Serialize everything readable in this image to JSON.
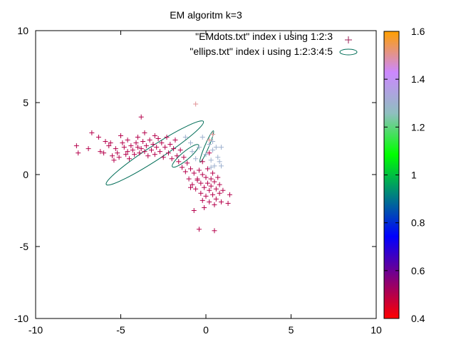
{
  "chart_data": {
    "type": "scatter",
    "title": "EM algoritm k=3",
    "xlim": [
      -10,
      10
    ],
    "ylim": [
      -10,
      10
    ],
    "x_ticks": [
      -10,
      -5,
      0,
      5,
      10
    ],
    "y_ticks": [
      -10,
      -5,
      0,
      5,
      10
    ],
    "grid": false,
    "legend_placement": "top-right",
    "legend": [
      {
        "label": "\"EMdots.txt\" index i using 1:2:3",
        "marker": "plus",
        "color": "#9b1d54"
      },
      {
        "label": "\"ellips.txt\" index i using 1:2:3:4:5",
        "marker": "ellipse",
        "color": "#006d57"
      }
    ],
    "colorbar": {
      "range": [
        0.4,
        1.6
      ],
      "ticks": [
        0.4,
        0.6,
        0.8,
        1,
        1.2,
        1.4,
        1.6
      ],
      "tick_labels": [
        "0.4",
        "0.6",
        "0.8",
        "1",
        "1.2",
        "1.4",
        "1.6"
      ],
      "palette": [
        "#ff0000",
        "#800080",
        "#0000ff",
        "#008080",
        "#00ff00",
        "#8fbfbf",
        "#cc88ff",
        "#ffa000"
      ]
    },
    "points": [
      [
        -7.6,
        2.0,
        0.5
      ],
      [
        -7.5,
        1.5,
        0.5
      ],
      [
        -6.9,
        1.8,
        0.5
      ],
      [
        -6.7,
        2.9,
        0.5
      ],
      [
        -6.3,
        2.6,
        0.5
      ],
      [
        -6.2,
        1.6,
        0.5
      ],
      [
        -6.0,
        1.5,
        0.5
      ],
      [
        -5.9,
        2.3,
        0.5
      ],
      [
        -5.7,
        2.0,
        0.5
      ],
      [
        -5.6,
        2.2,
        0.5
      ],
      [
        -5.5,
        1.3,
        0.5
      ],
      [
        -5.4,
        1.0,
        0.5
      ],
      [
        -5.3,
        1.8,
        0.5
      ],
      [
        -5.2,
        1.5,
        0.5
      ],
      [
        -5.1,
        1.2,
        0.5
      ],
      [
        -5.0,
        2.7,
        0.5
      ],
      [
        -4.9,
        2.2,
        0.5
      ],
      [
        -4.8,
        1.9,
        0.5
      ],
      [
        -4.7,
        1.4,
        0.5
      ],
      [
        -4.6,
        1.6,
        0.5
      ],
      [
        -4.6,
        2.4,
        0.5
      ],
      [
        -4.5,
        1.1,
        0.5
      ],
      [
        -4.4,
        2.0,
        0.5
      ],
      [
        -4.3,
        1.7,
        0.5
      ],
      [
        -4.2,
        1.4,
        0.5
      ],
      [
        -4.1,
        2.2,
        0.5
      ],
      [
        -4.0,
        1.9,
        0.5
      ],
      [
        -4.0,
        2.6,
        0.5
      ],
      [
        -3.9,
        1.5,
        0.5
      ],
      [
        -3.8,
        1.8,
        0.5
      ],
      [
        -3.8,
        4.0,
        0.5
      ],
      [
        -3.7,
        2.3,
        0.5
      ],
      [
        -3.6,
        1.6,
        0.5
      ],
      [
        -3.6,
        2.9,
        0.5
      ],
      [
        -3.5,
        2.0,
        0.5
      ],
      [
        -3.4,
        1.3,
        0.5
      ],
      [
        -3.3,
        2.4,
        0.5
      ],
      [
        -3.2,
        1.7,
        0.5
      ],
      [
        -3.1,
        2.1,
        0.5
      ],
      [
        -3.0,
        1.4,
        0.5
      ],
      [
        -3.0,
        2.7,
        0.5
      ],
      [
        -2.9,
        1.9,
        0.5
      ],
      [
        -2.8,
        2.5,
        0.5
      ],
      [
        -2.7,
        1.6,
        0.5
      ],
      [
        -2.6,
        2.2,
        0.5
      ],
      [
        -2.5,
        1.2,
        0.5
      ],
      [
        -2.4,
        1.9,
        0.5
      ],
      [
        -2.3,
        2.6,
        0.5
      ],
      [
        -2.2,
        1.5,
        0.5
      ],
      [
        -2.1,
        2.1,
        0.5
      ],
      [
        -2.0,
        1.1,
        0.5
      ],
      [
        -1.9,
        1.8,
        0.5
      ],
      [
        -1.8,
        2.4,
        0.5
      ],
      [
        -1.7,
        1.3,
        0.5
      ],
      [
        -1.6,
        0.9,
        0.5
      ],
      [
        -1.5,
        1.7,
        0.5
      ],
      [
        -1.4,
        0.5,
        0.5
      ],
      [
        -1.3,
        1.2,
        0.5
      ],
      [
        -1.2,
        0.2,
        0.5
      ],
      [
        -1.1,
        0.8,
        0.5
      ],
      [
        -1.0,
        -0.3,
        0.5
      ],
      [
        -0.9,
        0.4,
        0.5
      ],
      [
        -0.8,
        -0.7,
        0.5
      ],
      [
        -0.7,
        0.1,
        0.5
      ],
      [
        -0.6,
        -1.0,
        0.5
      ],
      [
        -0.5,
        -0.4,
        0.5
      ],
      [
        -0.4,
        0.3,
        0.5
      ],
      [
        -0.3,
        -1.3,
        0.5
      ],
      [
        -0.3,
        -0.6,
        0.5
      ],
      [
        -0.2,
        0.0,
        0.5
      ],
      [
        -0.1,
        -0.9,
        0.5
      ],
      [
        -0.1,
        -2.3,
        0.5
      ],
      [
        0.0,
        -0.2,
        0.5
      ],
      [
        0.0,
        -1.5,
        0.5
      ],
      [
        0.1,
        -0.6,
        0.5
      ],
      [
        0.1,
        0.4,
        0.5
      ],
      [
        0.2,
        -1.1,
        0.5
      ],
      [
        0.2,
        -1.9,
        0.5
      ],
      [
        0.3,
        -0.3,
        0.5
      ],
      [
        0.3,
        -0.8,
        0.5
      ],
      [
        0.4,
        -1.4,
        0.5
      ],
      [
        0.4,
        0.1,
        0.5
      ],
      [
        0.5,
        -0.5,
        0.5
      ],
      [
        0.5,
        -2.1,
        0.5
      ],
      [
        0.6,
        -1.0,
        0.5
      ],
      [
        0.6,
        -1.7,
        0.5
      ],
      [
        0.7,
        -0.2,
        0.5
      ],
      [
        0.8,
        -1.3,
        0.5
      ],
      [
        0.8,
        -0.7,
        0.5
      ],
      [
        0.9,
        -1.9,
        0.5
      ],
      [
        1.0,
        -1.1,
        0.5
      ],
      [
        1.3,
        -2.0,
        0.5
      ],
      [
        1.4,
        -1.4,
        0.5
      ],
      [
        -0.7,
        -2.5,
        0.5
      ],
      [
        -0.4,
        -3.8,
        0.5
      ],
      [
        0.5,
        -3.9,
        0.5
      ],
      [
        -0.2,
        -1.8,
        0.5
      ],
      [
        -0.5,
        -0.3,
        0.5
      ],
      [
        -0.9,
        -0.9,
        0.5
      ],
      [
        -0.2,
        0.9,
        0.5
      ],
      [
        0.2,
        1.5,
        0.5
      ],
      [
        -1.2,
        2.6,
        1.3
      ],
      [
        -0.9,
        2.2,
        1.3
      ],
      [
        -0.8,
        1.6,
        1.3
      ],
      [
        -0.6,
        1.1,
        1.3
      ],
      [
        -0.4,
        1.9,
        1.3
      ],
      [
        -0.2,
        2.6,
        1.3
      ],
      [
        0.0,
        1.4,
        1.3
      ],
      [
        0.2,
        2.1,
        1.3
      ],
      [
        0.3,
        1.0,
        1.3
      ],
      [
        0.4,
        1.7,
        1.3
      ],
      [
        0.5,
        0.6,
        1.3
      ],
      [
        0.6,
        1.9,
        1.3
      ],
      [
        0.7,
        1.2,
        1.3
      ],
      [
        0.8,
        0.9,
        1.3
      ],
      [
        0.9,
        1.9,
        1.3
      ],
      [
        0.4,
        2.3,
        1.3
      ],
      [
        0.9,
        0.6,
        1.3
      ],
      [
        0.3,
        0.5,
        1.3
      ],
      [
        -0.6,
        4.9,
        1.5
      ],
      [
        0.4,
        2.8,
        1.5
      ],
      [
        0.2,
        2.4,
        1.5
      ]
    ],
    "ellipses": [
      {
        "center": [
          -3.0,
          1.5
        ],
        "rx": 3.4,
        "ry": 0.5,
        "angle_deg": -33
      },
      {
        "center": [
          -1.2,
          1.3
        ],
        "rx": 1.0,
        "ry": 0.28,
        "angle_deg": -40
      },
      {
        "center": [
          0.05,
          1.95
        ],
        "rx": 1.0,
        "ry": 0.14,
        "angle_deg": -67
      }
    ]
  }
}
